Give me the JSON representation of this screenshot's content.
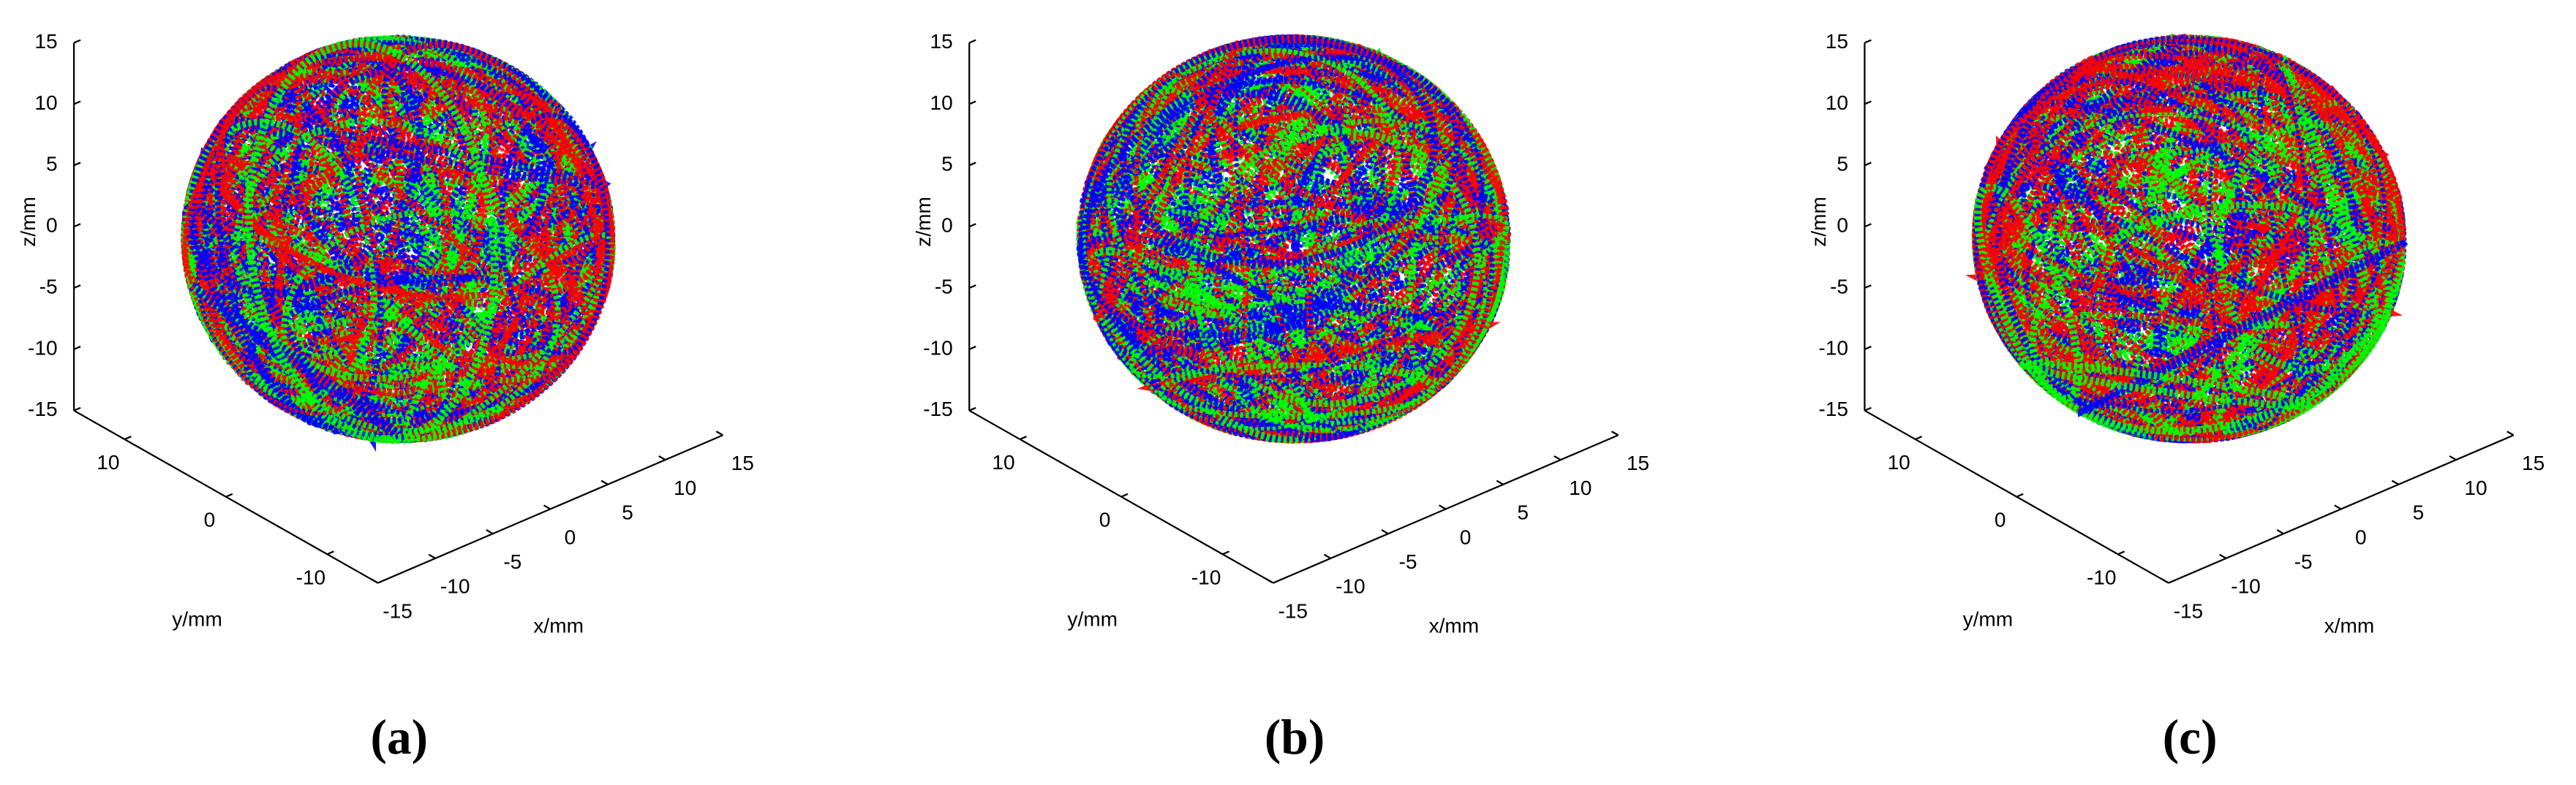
{
  "chart_data": [
    {
      "type": "scatter3d",
      "panel_label": "(a)",
      "xlabel": "x/mm",
      "ylabel": "y/mm",
      "zlabel": "z/mm",
      "xlim": [
        -15,
        15
      ],
      "ylim": [
        -15,
        15
      ],
      "zlim": [
        -15,
        15
      ],
      "xticks": [
        -15,
        -10,
        -5,
        0,
        5,
        10,
        15
      ],
      "yticks": [
        -10,
        0,
        10
      ],
      "zticks": [
        -15,
        -10,
        -5,
        0,
        5,
        10,
        15
      ],
      "colors": [
        "#ff0000",
        "#00ff00",
        "#0000ff"
      ]
    },
    {
      "type": "scatter3d",
      "panel_label": "(b)",
      "xlabel": "x/mm",
      "ylabel": "y/mm",
      "zlabel": "z/mm",
      "xlim": [
        -15,
        15
      ],
      "ylim": [
        -15,
        15
      ],
      "zlim": [
        -15,
        15
      ],
      "xticks": [
        -15,
        -10,
        -5,
        0,
        5,
        10,
        15
      ],
      "yticks": [
        -10,
        0,
        10
      ],
      "zticks": [
        -15,
        -10,
        -5,
        0,
        5,
        10,
        15
      ],
      "colors": [
        "#ff0000",
        "#00ff00",
        "#0000ff"
      ]
    },
    {
      "type": "scatter3d",
      "panel_label": "(c)",
      "xlabel": "x/mm",
      "ylabel": "y/mm",
      "zlabel": "z/mm",
      "xlim": [
        -15,
        15
      ],
      "ylim": [
        -15,
        15
      ],
      "zlim": [
        -15,
        15
      ],
      "xticks": [
        -15,
        -10,
        -5,
        0,
        5,
        10,
        15
      ],
      "yticks": [
        -10,
        0,
        10
      ],
      "zticks": [
        -15,
        -10,
        -5,
        0,
        5,
        10,
        15
      ],
      "colors": [
        "#ff0000",
        "#00ff00",
        "#0000ff"
      ]
    }
  ]
}
